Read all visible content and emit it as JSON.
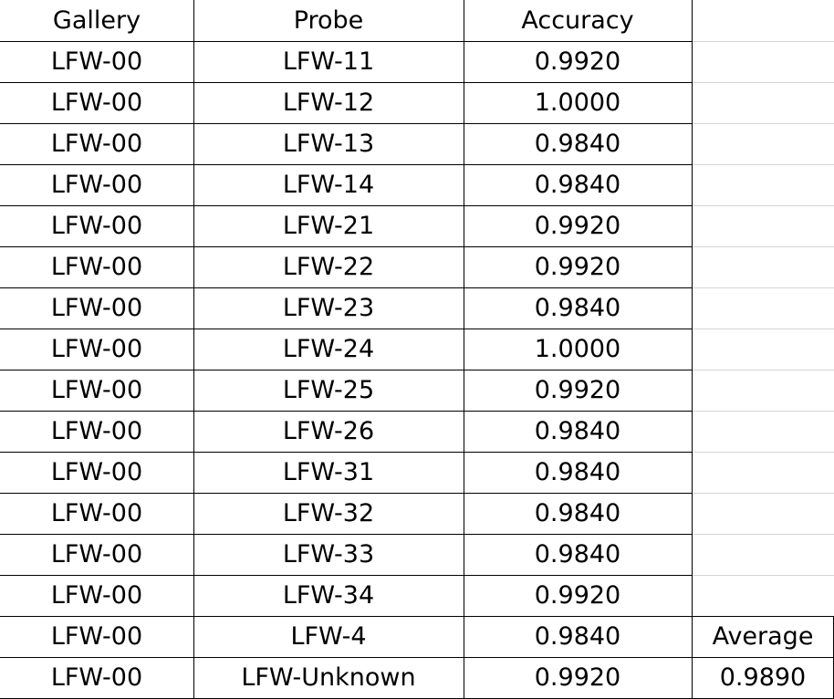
{
  "table": {
    "columns": [
      "Gallery",
      "Probe",
      "Accuracy"
    ],
    "rows": [
      {
        "gallery": "LFW-00",
        "probe": "LFW-11",
        "accuracy": "0.9920"
      },
      {
        "gallery": "LFW-00",
        "probe": "LFW-12",
        "accuracy": "1.0000"
      },
      {
        "gallery": "LFW-00",
        "probe": "LFW-13",
        "accuracy": "0.9840"
      },
      {
        "gallery": "LFW-00",
        "probe": "LFW-14",
        "accuracy": "0.9840"
      },
      {
        "gallery": "LFW-00",
        "probe": "LFW-21",
        "accuracy": "0.9920"
      },
      {
        "gallery": "LFW-00",
        "probe": "LFW-22",
        "accuracy": "0.9920"
      },
      {
        "gallery": "LFW-00",
        "probe": "LFW-23",
        "accuracy": "0.9840"
      },
      {
        "gallery": "LFW-00",
        "probe": "LFW-24",
        "accuracy": "1.0000"
      },
      {
        "gallery": "LFW-00",
        "probe": "LFW-25",
        "accuracy": "0.9920"
      },
      {
        "gallery": "LFW-00",
        "probe": "LFW-26",
        "accuracy": "0.9840"
      },
      {
        "gallery": "LFW-00",
        "probe": "LFW-31",
        "accuracy": "0.9840"
      },
      {
        "gallery": "LFW-00",
        "probe": "LFW-32",
        "accuracy": "0.9840"
      },
      {
        "gallery": "LFW-00",
        "probe": "LFW-33",
        "accuracy": "0.9840"
      },
      {
        "gallery": "LFW-00",
        "probe": "LFW-34",
        "accuracy": "0.9920"
      },
      {
        "gallery": "LFW-00",
        "probe": "LFW-4",
        "accuracy": "0.9840"
      },
      {
        "gallery": "LFW-00",
        "probe": "LFW-Unknown",
        "accuracy": "0.9920"
      }
    ],
    "average_label": "Average",
    "average_value": "0.9890"
  },
  "colors": {
    "border": "#000000",
    "gridline": "#d4d4d4",
    "background": "#ffffff"
  }
}
